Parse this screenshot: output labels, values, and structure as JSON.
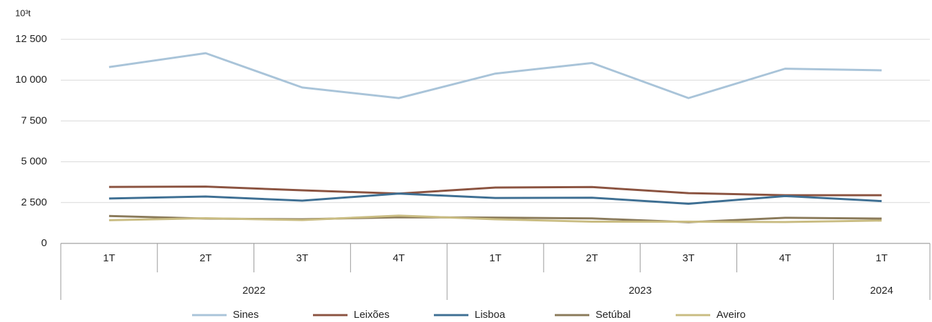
{
  "chart_data": {
    "type": "line",
    "y_label": "10³t",
    "categories": [
      "1T",
      "2T",
      "3T",
      "4T",
      "1T",
      "2T",
      "3T",
      "4T",
      "1T"
    ],
    "category_years": [
      "2022",
      "2022",
      "2022",
      "2022",
      "2023",
      "2023",
      "2023",
      "2023",
      "2024"
    ],
    "series": [
      {
        "name": "Sines",
        "color": "#a9c4d9",
        "values": [
          10800,
          11650,
          9550,
          8900,
          10400,
          11050,
          8900,
          10700,
          10600
        ]
      },
      {
        "name": "Leixões",
        "color": "#8b5340",
        "values": [
          3460,
          3480,
          3250,
          3050,
          3420,
          3450,
          3080,
          2950,
          2950
        ]
      },
      {
        "name": "Lisboa",
        "color": "#3e6f93",
        "values": [
          2750,
          2870,
          2620,
          3050,
          2780,
          2800,
          2430,
          2900,
          2590
        ]
      },
      {
        "name": "Setúbal",
        "color": "#8a7a5a",
        "values": [
          1680,
          1520,
          1480,
          1600,
          1580,
          1530,
          1300,
          1570,
          1520
        ]
      },
      {
        "name": "Aveiro",
        "color": "#c9bc82",
        "values": [
          1420,
          1540,
          1430,
          1700,
          1480,
          1330,
          1330,
          1310,
          1400
        ]
      }
    ],
    "ylim": [
      0,
      12500
    ],
    "yticks": [
      0,
      {
        "value": 2500,
        "label": "2 500"
      },
      {
        "value": 5000,
        "label": "5 000"
      },
      {
        "value": 7500,
        "label": "7 500"
      },
      {
        "value": 10000,
        "label": "10 000"
      },
      {
        "value": 12500,
        "label": "12 500"
      }
    ],
    "grid": true
  }
}
